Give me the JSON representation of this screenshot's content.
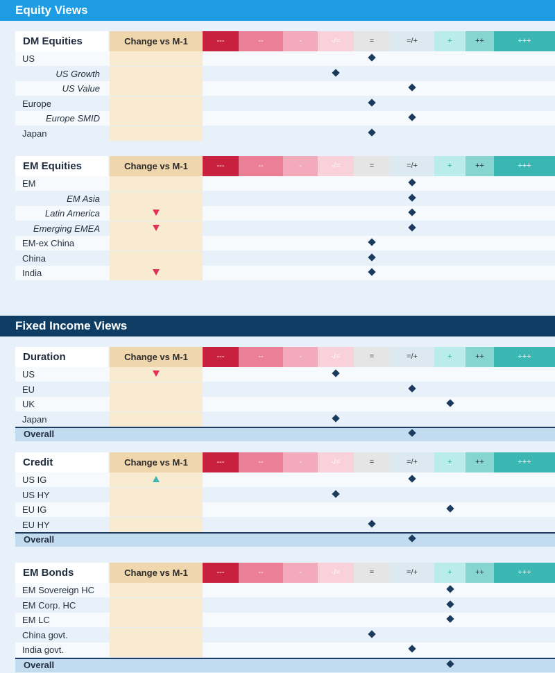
{
  "sections": [
    {
      "title": "Equity Views",
      "color": "#1d9be3"
    },
    {
      "title": "Fixed Income Views",
      "color": "#0f3d63"
    }
  ],
  "scale": [
    {
      "label": "---",
      "bg": "#c8213f",
      "fg": "#ffffff"
    },
    {
      "label": "--",
      "bg": "#ea7f96",
      "fg": "#ffffff"
    },
    {
      "label": "-",
      "bg": "#f3aabb",
      "fg": "#ffffff"
    },
    {
      "label": "-/=",
      "bg": "#f8d1da",
      "fg": "#ffffff"
    },
    {
      "label": "=",
      "bg": "#e5e5e5",
      "fg": "#333333"
    },
    {
      "label": "=/+",
      "bg": "#dce9f0",
      "fg": "#333333"
    },
    {
      "label": "+",
      "bg": "#b9ecea",
      "fg": "#2ba8a2"
    },
    {
      "label": "++",
      "bg": "#86d5d1",
      "fg": "#1f2d3d"
    },
    {
      "label": "+++",
      "bg": "#3bb6b2",
      "fg": "#ffffff"
    }
  ],
  "change_header": "Change vs M-1",
  "tables": [
    {
      "name": "DM Equities",
      "rows": [
        {
          "label": "US",
          "view": "=",
          "sub": false
        },
        {
          "label": "US Growth",
          "view": "-/=",
          "sub": true
        },
        {
          "label": "US Value",
          "view": "=/+",
          "sub": true
        },
        {
          "label": "Europe",
          "view": "=",
          "sub": false
        },
        {
          "label": "Europe SMID",
          "view": "=/+",
          "sub": true
        },
        {
          "label": "Japan",
          "view": "=",
          "sub": false
        }
      ]
    },
    {
      "name": "EM Equities",
      "rows": [
        {
          "label": "EM",
          "view": "=/+",
          "sub": false
        },
        {
          "label": "EM Asia",
          "view": "=/+",
          "sub": true
        },
        {
          "label": "Latin America",
          "view": "=/+",
          "sub": true,
          "change": "down"
        },
        {
          "label": "Emerging EMEA",
          "view": "=/+",
          "sub": true,
          "change": "down"
        },
        {
          "label": "EM-ex China",
          "view": "=",
          "sub": false
        },
        {
          "label": "China",
          "view": "=",
          "sub": false
        },
        {
          "label": "India",
          "view": "=",
          "sub": false,
          "change": "down"
        }
      ]
    },
    {
      "name": "Duration",
      "rows": [
        {
          "label": "US",
          "view": "-/=",
          "sub": false,
          "change": "down"
        },
        {
          "label": "EU",
          "view": "=/+",
          "sub": false
        },
        {
          "label": "UK",
          "view": "+",
          "sub": false
        },
        {
          "label": "Japan",
          "view": "-/=",
          "sub": false
        },
        {
          "label": "Overall",
          "view": "=/+",
          "overall": true
        }
      ]
    },
    {
      "name": "Credit",
      "rows": [
        {
          "label": "US IG",
          "view": "=/+",
          "sub": false,
          "change": "up"
        },
        {
          "label": "US HY",
          "view": "-/=",
          "sub": false
        },
        {
          "label": "EU IG",
          "view": "+",
          "sub": false
        },
        {
          "label": "EU HY",
          "view": "=",
          "sub": false
        },
        {
          "label": "Overall",
          "view": "=/+",
          "overall": true
        }
      ]
    },
    {
      "name": "EM Bonds",
      "rows": [
        {
          "label": "EM Sovereign HC",
          "view": "+",
          "sub": false
        },
        {
          "label": "EM Corp. HC",
          "view": "+",
          "sub": false
        },
        {
          "label": "EM LC",
          "view": "+",
          "sub": false
        },
        {
          "label": "China govt.",
          "view": "=",
          "sub": false
        },
        {
          "label": "India govt.",
          "view": "=/+",
          "sub": false
        },
        {
          "label": "Overall",
          "view": "+",
          "overall": true
        }
      ]
    }
  ]
}
